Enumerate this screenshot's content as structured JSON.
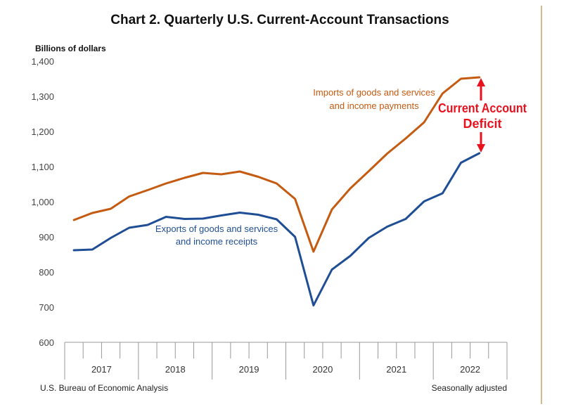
{
  "chart_data": {
    "type": "line",
    "title": "Chart 2. Quarterly U.S. Current-Account Transactions",
    "ylabel": "Billions of dollars",
    "ylim": [
      600,
      1400
    ],
    "yticks": [
      "600",
      "700",
      "800",
      "900",
      "1,000",
      "1,100",
      "1,200",
      "1,300",
      "1,400"
    ],
    "ytick_values": [
      600,
      700,
      800,
      900,
      1000,
      1100,
      1200,
      1300,
      1400
    ],
    "grid": false,
    "years": [
      "2017",
      "2018",
      "2019",
      "2020",
      "2021",
      "2022"
    ],
    "quarters": [
      "2017Q1",
      "2017Q2",
      "2017Q3",
      "2017Q4",
      "2018Q1",
      "2018Q2",
      "2018Q3",
      "2018Q4",
      "2019Q1",
      "2019Q2",
      "2019Q3",
      "2019Q4",
      "2020Q1",
      "2020Q2",
      "2020Q3",
      "2020Q4",
      "2021Q1",
      "2021Q2",
      "2021Q3",
      "2021Q4",
      "2022Q1",
      "2022Q2",
      "2022Q3"
    ],
    "series": [
      {
        "name": "Imports of goods and services and income payments",
        "label_lines": [
          "Imports of goods and services",
          "and income payments"
        ],
        "color": "#c55a11",
        "values": [
          948,
          968,
          980,
          1015,
          1033,
          1052,
          1068,
          1082,
          1078,
          1086,
          1071,
          1052,
          1008,
          858,
          978,
          1038,
          1087,
          1137,
          1180,
          1226,
          1308,
          1350,
          1354
        ]
      },
      {
        "name": "Exports of goods and services and income receipts",
        "label_lines": [
          "Exports of goods and services",
          "and income receipts"
        ],
        "color": "#1f4e95",
        "values": [
          862,
          864,
          897,
          926,
          934,
          957,
          951,
          952,
          961,
          969,
          963,
          950,
          900,
          705,
          807,
          846,
          897,
          929,
          951,
          1001,
          1024,
          1111,
          1138
        ]
      }
    ],
    "annotation": {
      "lines": [
        "Current Account",
        "Deficit"
      ],
      "color": "#e8121f"
    },
    "footer_left": "U.S. Bureau of Economic Analysis",
    "footer_right": "Seasonally adjusted"
  },
  "colors": {
    "axis": "#999999",
    "right_border": "#c8a46a"
  }
}
